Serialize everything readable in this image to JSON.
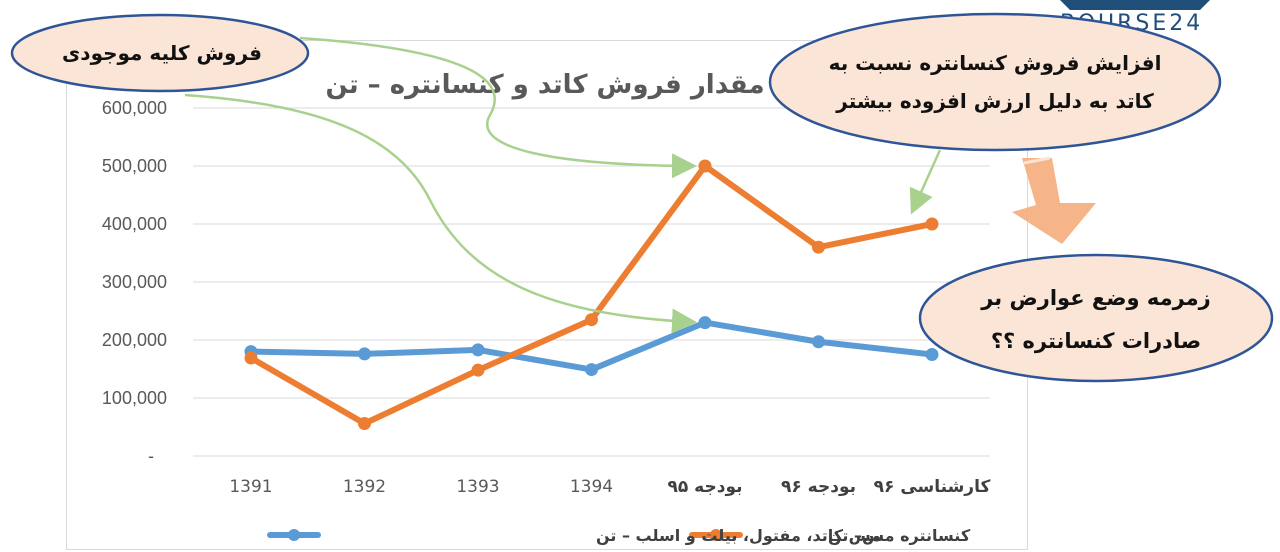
{
  "logo": {
    "text": "BOURSE24"
  },
  "colors": {
    "copper_line": "#5b9bd5",
    "concentrate_line": "#ed7d31",
    "bubble_fill": "#fbe5d6",
    "bubble_stroke": "#2e5597",
    "annotation_arrow": "#a9d18e",
    "big_arrow": "#f4b183"
  },
  "annotations": {
    "total_sales": "فروش کلیه موجودی",
    "increase_line1": "افزایش فروش کنسانتره نسبت به",
    "increase_line2": "کاتد به دلیل ارزش افزوده بیشتر",
    "export_line1": "زمرمه وضع عوارض بر",
    "export_line2": "صادرات کنسانتره ؟؟"
  },
  "chart_data": {
    "type": "line",
    "title": "مقدار فروش کاتد و کنسانتره – تن",
    "categories": [
      "1391",
      "1392",
      "1393",
      "1394",
      "بودجه ۹۵",
      "بودجه ۹۶",
      "کارشناسی ۹۶"
    ],
    "y_tick_labels": [
      "-",
      "100,000",
      "200,000",
      "300,000",
      "400,000",
      "500,000",
      "600,000"
    ],
    "ylim": [
      0,
      600000
    ],
    "grid": true,
    "legend_position": "bottom",
    "series": [
      {
        "name": "مس کاتد، مفتول، بیلت و اسلب – تن",
        "color": "#5b9bd5",
        "values": [
          180000,
          176000,
          183000,
          149000,
          230000,
          197000,
          175000
        ]
      },
      {
        "name": "کنسانتره مس– تن",
        "color": "#ed7d31",
        "values": [
          169000,
          56000,
          148000,
          235000,
          500000,
          360000,
          400000
        ]
      }
    ]
  }
}
